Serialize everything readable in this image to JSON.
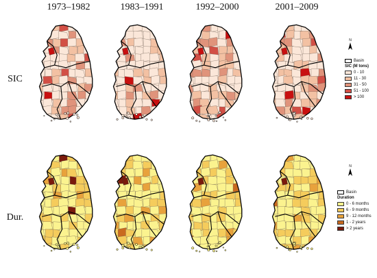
{
  "periods": [
    "1973–1982",
    "1983–1991",
    "1992–2000",
    "2001–2009"
  ],
  "rows": [
    {
      "label": "SIC",
      "legend_title": "SIC (M tons)",
      "basin_label": "Basin",
      "classes": [
        {
          "label": "0 - 10",
          "color": "#fbe7d9"
        },
        {
          "label": "11 - 30",
          "color": "#f3c1a3"
        },
        {
          "label": "31 - 50",
          "color": "#e0937b"
        },
        {
          "label": "51 - 100",
          "color": "#d24f45"
        },
        {
          "label": "> 100",
          "color": "#c81010"
        }
      ],
      "emphasis": [
        [
          0.55,
          0.45,
          0.5,
          0.35
        ],
        [
          0.55,
          0.45,
          0.5,
          0.35
        ],
        [
          0.5,
          0.4,
          0.55,
          0.4
        ],
        [
          0.4,
          0.35,
          0.45,
          0.45
        ]
      ]
    },
    {
      "label": "Dur.",
      "legend_title": "Duration",
      "basin_label": "Basin",
      "classes": [
        {
          "label": "0 - 6 months",
          "color": "#fbf38f"
        },
        {
          "label": "6 - 9 months",
          "color": "#f5cc5c"
        },
        {
          "label": "9 - 12 months",
          "color": "#e8a23c"
        },
        {
          "label": "1 - 2 years",
          "color": "#c96a1f"
        },
        {
          "label": "> 2 years",
          "color": "#7a1a0c"
        }
      ],
      "emphasis": [
        [
          0.55,
          0.5,
          0.35,
          0.25
        ],
        [
          0.55,
          0.5,
          0.35,
          0.25
        ],
        [
          0.55,
          0.5,
          0.35,
          0.25
        ],
        [
          0.55,
          0.5,
          0.35,
          0.25
        ]
      ]
    }
  ],
  "north_label": "N"
}
